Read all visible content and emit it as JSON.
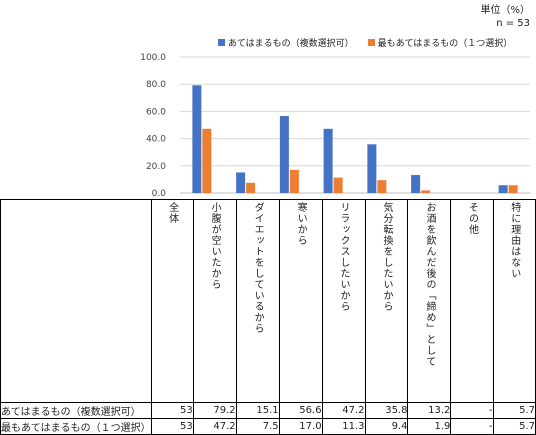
{
  "unit_label": "単位（%）",
  "n_label": "n = 53",
  "colors": {
    "series1": "#4472c4",
    "series2": "#ed7d31",
    "grid": "#d9d9d9"
  },
  "chart_data": {
    "type": "bar",
    "categories": [
      "小腹が空いたから",
      "ダイエットをしているから",
      "寒いから",
      "リラックスしたいから",
      "気分転換をしたいから",
      "お酒を飲んだ後の「締め」として",
      "その他",
      "特に理由はない"
    ],
    "series": [
      {
        "name": "あてはまるもの（複数選択可）",
        "values": [
          79.2,
          15.1,
          56.6,
          47.2,
          35.8,
          13.2,
          0,
          5.7
        ]
      },
      {
        "name": "最もあてはまるもの（１つ選択）",
        "values": [
          47.2,
          7.5,
          17.0,
          11.3,
          9.4,
          1.9,
          0,
          5.7
        ]
      }
    ],
    "yticks": [
      "0.0",
      "20.0",
      "40.0",
      "60.0",
      "80.0",
      "100.0"
    ],
    "ylim": [
      0,
      100
    ],
    "grid": true,
    "legend": "top"
  },
  "table": {
    "total_header": "全体",
    "headers": [
      "小腹が空いたから",
      "ダイエットをしているから",
      "寒いから",
      "リラックスしたいから",
      "気分転換をしたいから",
      "お酒を飲んだ後の「締め」として",
      "その他",
      "特に理由はない"
    ],
    "rows": [
      {
        "label": "あてはまるもの（複数選択可）",
        "total": "53",
        "cells": [
          "79.2",
          "15.1",
          "56.6",
          "47.2",
          "35.8",
          "13.2",
          "-",
          "5.7"
        ]
      },
      {
        "label": "最もあてはまるもの（１つ選択）",
        "total": "53",
        "cells": [
          "47.2",
          "7.5",
          "17.0",
          "11.3",
          "9.4",
          "1.9",
          "-",
          "5.7"
        ]
      }
    ]
  }
}
